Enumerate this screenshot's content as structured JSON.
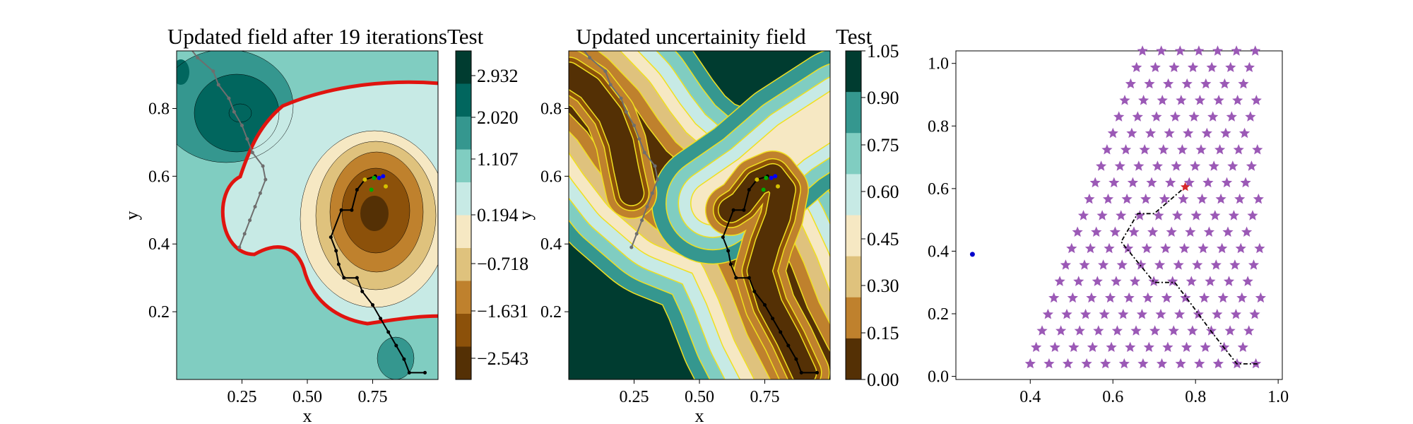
{
  "chart_data": [
    {
      "type": "contour",
      "title": "Updated field after 19 iterations",
      "xlabel": "x",
      "ylabel": "y",
      "x_ticks": [
        "0.25",
        "0.50",
        "0.75"
      ],
      "y_ticks": [
        "0.2",
        "0.4",
        "0.6",
        "0.8"
      ],
      "xlim": [
        0.0,
        1.0
      ],
      "ylim": [
        0.0,
        0.97
      ],
      "minimum_region_center": [
        0.75,
        0.49
      ],
      "zero_contour_color": "#e0140f",
      "colorbar": {
        "label": "Test",
        "ticks": [
          "2.932",
          "2.020",
          "1.107",
          "0.194",
          "−0.718",
          "−1.631",
          "−2.543"
        ],
        "colors": [
          "#003c30",
          "#01665e",
          "#35978f",
          "#80cdc1",
          "#c7eae5",
          "#f6e8c3",
          "#dfc27d",
          "#bf812d",
          "#8c510a",
          "#543005"
        ]
      },
      "path_black": [
        [
          0.95,
          0.02
        ],
        [
          0.89,
          0.02
        ],
        [
          0.87,
          0.06
        ],
        [
          0.84,
          0.1
        ],
        [
          0.81,
          0.14
        ],
        [
          0.78,
          0.18
        ],
        [
          0.75,
          0.22
        ],
        [
          0.71,
          0.26
        ],
        [
          0.69,
          0.3
        ],
        [
          0.64,
          0.3
        ],
        [
          0.62,
          0.34
        ],
        [
          0.61,
          0.38
        ],
        [
          0.59,
          0.42
        ],
        [
          0.63,
          0.5
        ],
        [
          0.67,
          0.5
        ],
        [
          0.69,
          0.56
        ],
        [
          0.72,
          0.59
        ],
        [
          0.76,
          0.6
        ]
      ],
      "path_gray": [
        [
          0.24,
          0.39
        ],
        [
          0.26,
          0.43
        ],
        [
          0.28,
          0.47
        ],
        [
          0.3,
          0.51
        ],
        [
          0.32,
          0.55
        ],
        [
          0.34,
          0.59
        ],
        [
          0.33,
          0.63
        ],
        [
          0.29,
          0.67
        ],
        [
          0.27,
          0.71
        ],
        [
          0.25,
          0.75
        ],
        [
          0.22,
          0.79
        ],
        [
          0.2,
          0.83
        ],
        [
          0.16,
          0.87
        ],
        [
          0.14,
          0.91
        ],
        [
          0.08,
          0.95
        ],
        [
          0.04,
          0.99
        ]
      ],
      "markers": [
        {
          "x": 0.775,
          "y": 0.595,
          "color": "#0000ff"
        },
        {
          "x": 0.755,
          "y": 0.595,
          "color": "#00aa00"
        },
        {
          "x": 0.745,
          "y": 0.56,
          "color": "#00aa00"
        },
        {
          "x": 0.72,
          "y": 0.59,
          "color": "#d4c000"
        },
        {
          "x": 0.8,
          "y": 0.57,
          "color": "#d4c000"
        },
        {
          "x": 0.79,
          "y": 0.6,
          "color": "#0000ff"
        }
      ]
    },
    {
      "type": "contour",
      "title": "Updated uncertainity field",
      "xlabel": "x",
      "ylabel": "y",
      "x_ticks": [
        "0.25",
        "0.50",
        "0.75"
      ],
      "y_ticks": [
        "0.2",
        "0.4",
        "0.6",
        "0.8"
      ],
      "xlim": [
        0.0,
        1.0
      ],
      "ylim": [
        0.0,
        0.97
      ],
      "contour_line_color": "#f0e020",
      "colorbar": {
        "label": "Test",
        "ticks": [
          "1.05",
          "0.90",
          "0.75",
          "0.60",
          "0.45",
          "0.30",
          "0.15",
          "0.00"
        ],
        "colors": [
          "#003c30",
          "#35978f",
          "#80cdc1",
          "#c7eae5",
          "#f6e8c3",
          "#dfc27d",
          "#bf812d",
          "#543005"
        ]
      }
    },
    {
      "type": "scatter",
      "x_ticks": [
        "0.4",
        "0.6",
        "0.8",
        "1.0"
      ],
      "y_ticks": [
        "0.0",
        "0.2",
        "0.4",
        "0.6",
        "0.8",
        "1.0"
      ],
      "xlim": [
        0.22,
        1.01
      ],
      "ylim": [
        -0.01,
        1.04
      ],
      "grid_marker": "star",
      "grid_color": "#9b59b6",
      "grid_rows": 20,
      "grid_row_spacing": 0.0526,
      "grid_col_spacing": 0.0455,
      "grid_x_max": 0.95,
      "grid_left_edge": [
        [
          0.4,
          0.04
        ],
        [
          0.65,
          0.96
        ]
      ],
      "blue_point": {
        "x": 0.26,
        "y": 0.39,
        "color": "#0000cc"
      },
      "red_point": {
        "x": 0.775,
        "y": 0.605,
        "color": "#d62728"
      },
      "path": [
        [
          0.95,
          0.04
        ],
        [
          0.9,
          0.04
        ],
        [
          0.84,
          0.14
        ],
        [
          0.79,
          0.23
        ],
        [
          0.75,
          0.3
        ],
        [
          0.7,
          0.3
        ],
        [
          0.62,
          0.43
        ],
        [
          0.66,
          0.52
        ],
        [
          0.7,
          0.52
        ],
        [
          0.775,
          0.605
        ]
      ]
    }
  ]
}
